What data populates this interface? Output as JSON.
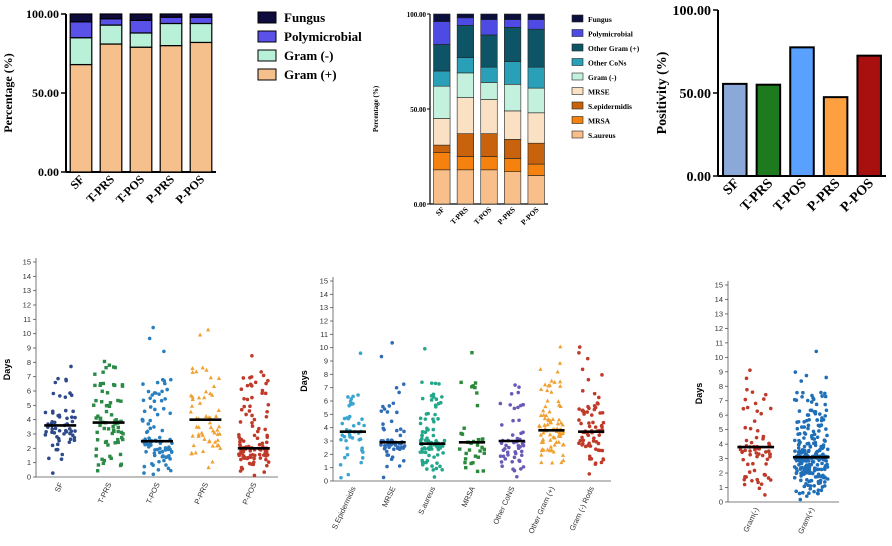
{
  "chart_data": [
    {
      "type": "bar",
      "stacked": true,
      "title": "",
      "ylabel": "Percentage (%)",
      "ylim": [
        0,
        100
      ],
      "yticks": [
        "0.00",
        "50.00",
        "100.00"
      ],
      "categories": [
        "SF",
        "T-PRS",
        "T-POS",
        "P-PRS",
        "P-POS"
      ],
      "legend": [
        "Fungus",
        "Polymicrobial",
        "Gram (-)",
        "Gram (+)"
      ],
      "colors": {
        "Fungus": "#0e0c3c",
        "Polymicrobial": "#5a52e8",
        "Gram (-)": "#b8f0d8",
        "Gram (+)": "#f5c08c"
      },
      "series": [
        {
          "name": "Gram (+)",
          "values": [
            68,
            81,
            79,
            80,
            82
          ]
        },
        {
          "name": "Gram (-)",
          "values": [
            17,
            12,
            9,
            14,
            12
          ]
        },
        {
          "name": "Polymicrobial",
          "values": [
            10,
            4,
            8,
            4,
            4
          ]
        },
        {
          "name": "Fungus",
          "values": [
            5,
            3,
            4,
            2,
            2
          ]
        }
      ]
    },
    {
      "type": "bar",
      "stacked": true,
      "ylabel": "Percentage (%)",
      "ylim": [
        0,
        100
      ],
      "yticks": [
        "0.00",
        "50.00",
        "100.00"
      ],
      "categories": [
        "SF",
        "T-PRS",
        "T-POS",
        "P-PRS",
        "P-POS"
      ],
      "legend": [
        "Fungus",
        "Polymicrobial",
        "Other Gram (+)",
        "Other CoNs",
        "Gram (-)",
        "MRSE",
        "S.epidermidis",
        "MRSA",
        "S.aureus"
      ],
      "colors": {
        "S.aureus": "#f8bf8a",
        "MRSA": "#f5820f",
        "S.epidermidis": "#c8620c",
        "MRSE": "#fbe1c4",
        "Gram (-)": "#c4f1de",
        "Other CoNs": "#2aa0b8",
        "Other Gram (+)": "#0d5466",
        "Polymicrobial": "#4e4be5",
        "Fungus": "#0b0f3c"
      },
      "series": [
        {
          "name": "S.aureus",
          "values": [
            18,
            18,
            18,
            17,
            15
          ]
        },
        {
          "name": "MRSA",
          "values": [
            9,
            7,
            7,
            7,
            6
          ]
        },
        {
          "name": "S.epidermidis",
          "values": [
            4,
            12,
            12,
            10,
            11
          ]
        },
        {
          "name": "MRSE",
          "values": [
            14,
            19,
            18,
            15,
            16
          ]
        },
        {
          "name": "Gram (-)",
          "values": [
            17,
            13,
            9,
            14,
            13
          ]
        },
        {
          "name": "Other CoNs",
          "values": [
            8,
            8,
            8,
            12,
            11
          ]
        },
        {
          "name": "Other Gram (+)",
          "values": [
            14,
            17,
            17,
            18,
            20
          ]
        },
        {
          "name": "Polymicrobial",
          "values": [
            12,
            4,
            8,
            4,
            5
          ]
        },
        {
          "name": "Fungus",
          "values": [
            4,
            2,
            3,
            3,
            3
          ]
        }
      ]
    },
    {
      "type": "bar",
      "ylabel": "Positivity (%)",
      "ylim": [
        0,
        100
      ],
      "yticks": [
        "0.00",
        "50.00",
        "100.00"
      ],
      "categories": [
        "SF",
        "T-PRS",
        "T-POS",
        "P-PRS",
        "P-POS"
      ],
      "values": [
        55.5,
        55,
        77.5,
        47.5,
        72.5
      ],
      "colors": [
        "#8aa8d8",
        "#1e7a1e",
        "#5aa0ff",
        "#ffa040",
        "#a81010"
      ]
    },
    {
      "type": "scatter",
      "subtype": "strip",
      "ylabel": "Days",
      "ylim": [
        0,
        15
      ],
      "yticks": [
        "0",
        "1",
        "2",
        "3",
        "4",
        "5",
        "6",
        "7",
        "8",
        "9",
        "10",
        "11",
        "12",
        "13",
        "14",
        "15"
      ],
      "categories": [
        "SF",
        "T-PRS",
        "T-POS",
        "P-PRS",
        "P-POS"
      ],
      "medians": [
        3.6,
        3.8,
        2.5,
        4.0,
        2.0
      ],
      "colors": [
        "#2e4a8a",
        "#2a8a46",
        "#2a7fbf",
        "#f0a030",
        "#c03a2a"
      ],
      "point_counts": [
        60,
        75,
        90,
        60,
        110
      ]
    },
    {
      "type": "scatter",
      "subtype": "strip",
      "ylabel": "Days",
      "ylim": [
        0,
        15
      ],
      "yticks": [
        "0",
        "1",
        "2",
        "3",
        "4",
        "5",
        "6",
        "7",
        "8",
        "9",
        "10",
        "11",
        "12",
        "13",
        "14",
        "15"
      ],
      "categories": [
        "S.Epidermidis",
        "MRSE",
        "S.aureus",
        "MRSA",
        "Other CoNS",
        "Other Gram (+)",
        "Gram (-) Rods"
      ],
      "medians": [
        3.7,
        2.9,
        2.8,
        2.9,
        3.0,
        3.8,
        3.7
      ],
      "colors": [
        "#3aa6d0",
        "#2f6cb8",
        "#22a78a",
        "#2a8a3a",
        "#6a5ab8",
        "#f0a030",
        "#c03a2a"
      ],
      "point_counts": [
        45,
        60,
        90,
        35,
        55,
        85,
        75
      ]
    },
    {
      "type": "scatter",
      "subtype": "strip",
      "ylabel": "Days",
      "ylim": [
        0,
        15
      ],
      "yticks": [
        "0",
        "1",
        "2",
        "3",
        "4",
        "5",
        "6",
        "7",
        "8",
        "9",
        "10",
        "11",
        "12",
        "13",
        "14",
        "15"
      ],
      "categories": [
        "Gram(-)",
        "Gram(+)"
      ],
      "medians": [
        3.8,
        3.1
      ],
      "colors": [
        "#c03a2a",
        "#1f6fb8"
      ],
      "point_counts": [
        70,
        260
      ]
    }
  ]
}
